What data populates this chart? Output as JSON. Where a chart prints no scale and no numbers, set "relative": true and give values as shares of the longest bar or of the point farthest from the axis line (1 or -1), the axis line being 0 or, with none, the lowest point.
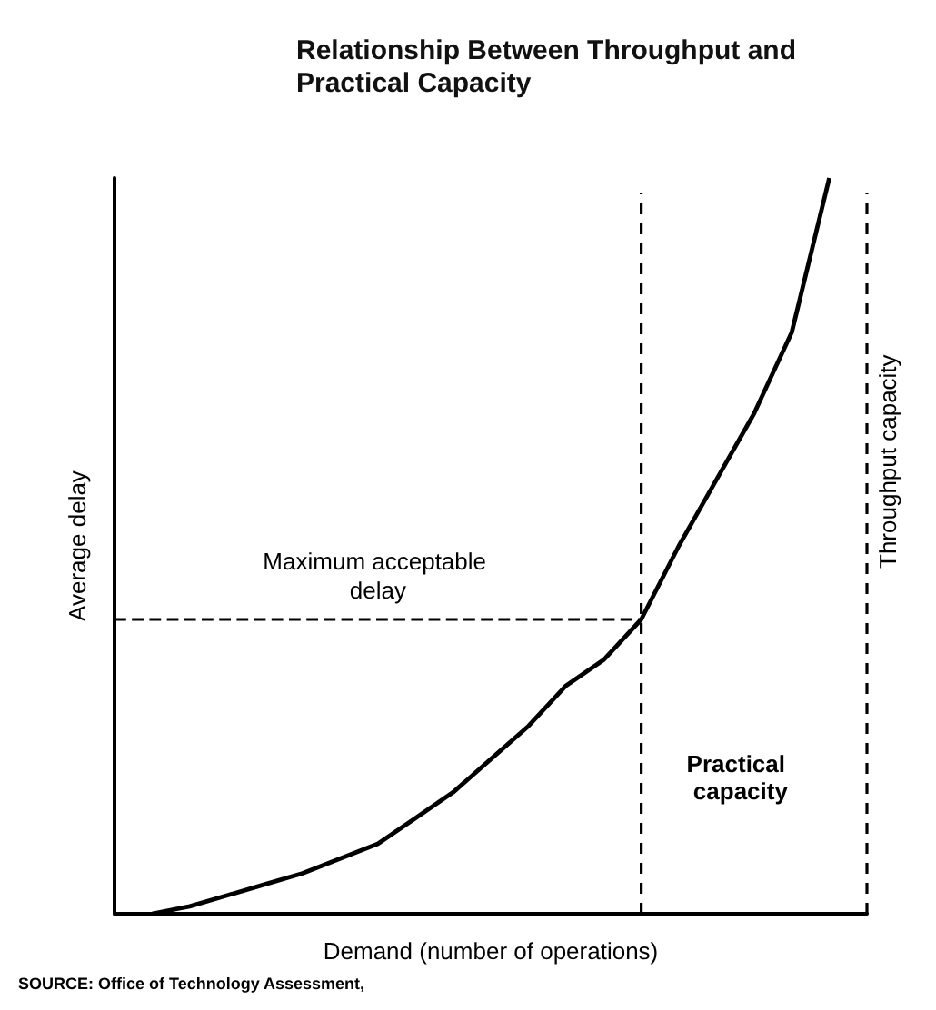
{
  "chart_data": {
    "type": "line",
    "title": "Relationship Between Throughput and Practical Capacity",
    "xlabel": "Demand (number of operations)",
    "ylabel": "Average delay",
    "relative": true,
    "tick_labels": false,
    "marker": "none",
    "line_style": "solid",
    "categories": [
      null,
      null,
      null,
      null,
      null,
      null,
      null,
      null,
      null,
      null,
      null,
      null,
      null,
      null,
      null,
      null,
      null,
      null,
      null,
      null,
      null
    ],
    "series": [
      {
        "color": "#000000",
        "values": [
          null,
          0,
          0.01,
          0.025,
          0.04,
          0.055,
          0.075,
          0.095,
          0.13,
          0.165,
          0.21,
          0.255,
          0.31,
          0.345,
          0.4,
          0.5,
          0.59,
          0.68,
          0.79,
          1,
          null
        ]
      }
    ],
    "ref_lines": [
      {
        "axis": "y",
        "value": 0.4,
        "label": "Maximum acceptable delay",
        "line_style": "dashed"
      }
    ],
    "annotations": [
      "Practical capacity",
      "Throughput capacity",
      "SOURCE: Office of Technology Assessment,"
    ]
  }
}
